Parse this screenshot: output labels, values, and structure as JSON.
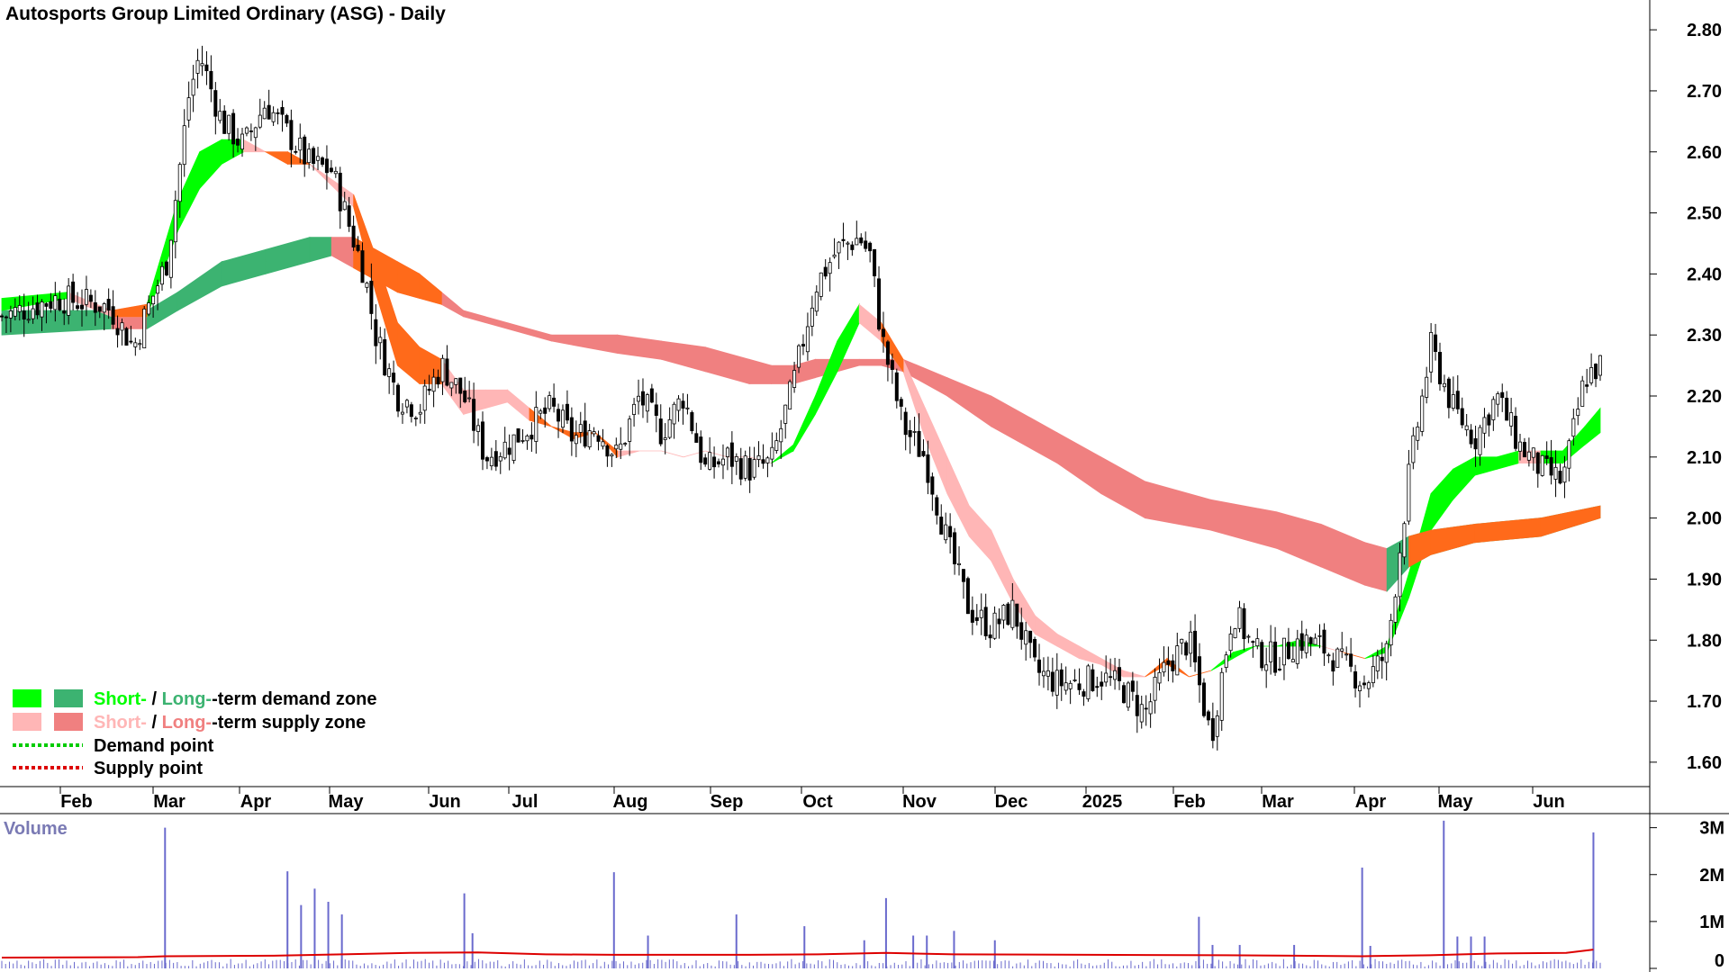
{
  "chart_data": {
    "type": "candlestick",
    "title": "Autosports Group Limited Ordinary (ASG) - Daily",
    "x_tick_labels": [
      "Feb",
      "Mar",
      "Apr",
      "May",
      "Jun",
      "Jul",
      "Aug",
      "Sep",
      "Oct",
      "Nov",
      "Dec",
      "2025",
      "Feb",
      "Mar",
      "Apr",
      "May",
      "Jun"
    ],
    "y_ticks": [
      1.6,
      1.7,
      1.8,
      1.9,
      2.0,
      2.1,
      2.2,
      2.3,
      2.4,
      2.5,
      2.6,
      2.7,
      2.8
    ],
    "y_tick_labels": [
      "1.60",
      "1.70",
      "1.80",
      "1.90",
      "2.00",
      "2.10",
      "2.20",
      "2.30",
      "2.40",
      "2.50",
      "2.60",
      "2.70",
      "2.80"
    ],
    "ylim": [
      1.56,
      2.84
    ],
    "price_path": [
      [
        0,
        2.33
      ],
      [
        2.5,
        2.36
      ],
      [
        4.5,
        2.35
      ],
      [
        5,
        2.34
      ],
      [
        6,
        2.28
      ],
      [
        6.5,
        2.33
      ],
      [
        7.5,
        2.42
      ],
      [
        8,
        2.55
      ],
      [
        8.5,
        2.69
      ],
      [
        9,
        2.76
      ],
      [
        10,
        2.65
      ],
      [
        11,
        2.61
      ],
      [
        12,
        2.68
      ],
      [
        13,
        2.63
      ],
      [
        14,
        2.58
      ],
      [
        15,
        2.57
      ],
      [
        16.5,
        2.4
      ],
      [
        17,
        2.3
      ],
      [
        18,
        2.2
      ],
      [
        19,
        2.18
      ],
      [
        20,
        2.25
      ],
      [
        21,
        2.2
      ],
      [
        22,
        2.1
      ],
      [
        23,
        2.12
      ],
      [
        24,
        2.15
      ],
      [
        25,
        2.18
      ],
      [
        26,
        2.13
      ],
      [
        27,
        2.15
      ],
      [
        28,
        2.1
      ],
      [
        29,
        2.2
      ],
      [
        30,
        2.14
      ],
      [
        31,
        2.2
      ],
      [
        32,
        2.08
      ],
      [
        33,
        2.1
      ],
      [
        34,
        2.08
      ],
      [
        35,
        2.09
      ],
      [
        36,
        2.22
      ],
      [
        37,
        2.38
      ],
      [
        38,
        2.44
      ],
      [
        39,
        2.46
      ],
      [
        39.5,
        2.43
      ],
      [
        40,
        2.3
      ],
      [
        41,
        2.15
      ],
      [
        42,
        2.1
      ],
      [
        43,
        1.96
      ],
      [
        44,
        1.85
      ],
      [
        45,
        1.82
      ],
      [
        46,
        1.85
      ],
      [
        47,
        1.75
      ],
      [
        48,
        1.73
      ],
      [
        49,
        1.73
      ],
      [
        50,
        1.74
      ],
      [
        51,
        1.72
      ],
      [
        52,
        1.68
      ],
      [
        53,
        1.76
      ],
      [
        54,
        1.8
      ],
      [
        55,
        1.64
      ],
      [
        56,
        1.85
      ],
      [
        57,
        1.78
      ],
      [
        58,
        1.77
      ],
      [
        59,
        1.8
      ],
      [
        60,
        1.79
      ],
      [
        61,
        1.76
      ],
      [
        62,
        1.73
      ],
      [
        63,
        1.78
      ],
      [
        64,
        2.07
      ],
      [
        65,
        2.28
      ],
      [
        66,
        2.18
      ],
      [
        67,
        2.13
      ],
      [
        68,
        2.2
      ],
      [
        69,
        2.12
      ],
      [
        70,
        2.08
      ],
      [
        71,
        2.06
      ],
      [
        72,
        2.23
      ],
      [
        72.7,
        2.25
      ]
    ],
    "short_term_zone": [
      [
        0,
        2.34,
        2.36,
        "demand"
      ],
      [
        3,
        2.36,
        2.37,
        "demand"
      ],
      [
        5,
        2.33,
        2.34,
        "supply"
      ],
      [
        6.6,
        2.33,
        2.35,
        "supply"
      ],
      [
        8,
        2.47,
        2.52,
        "demand"
      ],
      [
        9,
        2.54,
        2.6,
        "demand"
      ],
      [
        10,
        2.58,
        2.62,
        "demand"
      ],
      [
        11,
        2.6,
        2.62,
        "demand"
      ],
      [
        12,
        2.6,
        2.6,
        "supply"
      ],
      [
        13,
        2.58,
        2.6,
        "supply"
      ],
      [
        14,
        2.58,
        2.58,
        "supply"
      ],
      [
        16,
        2.51,
        2.53,
        "supply"
      ],
      [
        17,
        2.37,
        2.43,
        "supply"
      ],
      [
        18,
        2.25,
        2.32,
        "supply"
      ],
      [
        19,
        2.22,
        2.28,
        "supply"
      ],
      [
        20,
        2.22,
        2.26,
        "supply"
      ],
      [
        21,
        2.17,
        2.21,
        "supply"
      ],
      [
        22,
        2.18,
        2.21,
        "supply"
      ],
      [
        23,
        2.19,
        2.21,
        "supply"
      ],
      [
        24,
        2.16,
        2.18,
        "supply"
      ],
      [
        25,
        2.15,
        2.15,
        "supply"
      ],
      [
        26,
        2.13,
        2.14,
        "supply"
      ],
      [
        27,
        2.14,
        2.14,
        "supply"
      ],
      [
        28,
        2.1,
        2.11,
        "supply"
      ],
      [
        29,
        2.11,
        2.11,
        "supply"
      ],
      [
        30,
        2.11,
        2.11,
        "supply"
      ],
      [
        31,
        2.1,
        2.1,
        "supply"
      ],
      [
        32,
        2.11,
        2.11,
        "supply"
      ],
      [
        33,
        2.1,
        2.1,
        "supply"
      ],
      [
        34,
        2.1,
        2.1,
        "supply"
      ],
      [
        35,
        2.09,
        2.09,
        "supply"
      ],
      [
        36,
        2.11,
        2.12,
        "demand"
      ],
      [
        37,
        2.17,
        2.2,
        "demand"
      ],
      [
        38,
        2.24,
        2.29,
        "demand"
      ],
      [
        39,
        2.32,
        2.35,
        "demand"
      ],
      [
        40,
        2.29,
        2.32,
        "supply"
      ],
      [
        41,
        2.24,
        2.26,
        "supply"
      ],
      [
        42,
        2.13,
        2.18,
        "supply"
      ],
      [
        43,
        2.04,
        2.1,
        "supply"
      ],
      [
        44,
        1.97,
        2.02,
        "supply"
      ],
      [
        45,
        1.93,
        1.98,
        "supply"
      ],
      [
        46,
        1.86,
        1.9,
        "supply"
      ],
      [
        47,
        1.81,
        1.84,
        "supply"
      ],
      [
        48,
        1.79,
        1.81,
        "supply"
      ],
      [
        49,
        1.77,
        1.79,
        "supply"
      ],
      [
        50,
        1.76,
        1.77,
        "supply"
      ],
      [
        51,
        1.74,
        1.75,
        "supply"
      ],
      [
        52,
        1.74,
        1.74,
        "supply"
      ],
      [
        53,
        1.76,
        1.77,
        "supply"
      ],
      [
        54,
        1.74,
        1.74,
        "supply"
      ],
      [
        55,
        1.75,
        1.75,
        "supply"
      ],
      [
        56,
        1.77,
        1.78,
        "demand"
      ],
      [
        57,
        1.79,
        1.79,
        "demand"
      ],
      [
        58,
        1.79,
        1.79,
        "demand"
      ],
      [
        59,
        1.79,
        1.8,
        "demand"
      ],
      [
        60,
        1.79,
        1.79,
        "demand"
      ],
      [
        61,
        1.78,
        1.78,
        "supply"
      ],
      [
        62,
        1.77,
        1.77,
        "supply"
      ],
      [
        63,
        1.78,
        1.79,
        "demand"
      ],
      [
        64,
        1.87,
        1.91,
        "demand"
      ],
      [
        65,
        1.98,
        2.04,
        "demand"
      ],
      [
        66,
        2.03,
        2.08,
        "demand"
      ],
      [
        67,
        2.07,
        2.1,
        "demand"
      ],
      [
        68,
        2.08,
        2.1,
        "demand"
      ],
      [
        69,
        2.09,
        2.11,
        "demand"
      ],
      [
        70,
        2.09,
        2.11,
        "supply"
      ],
      [
        71,
        2.09,
        2.11,
        "demand"
      ],
      [
        72,
        2.12,
        2.15,
        "demand"
      ],
      [
        72.7,
        2.14,
        2.18,
        "demand"
      ]
    ],
    "long_term_zone": [
      [
        0,
        2.3,
        2.34,
        "demand"
      ],
      [
        5,
        2.31,
        2.34,
        "demand"
      ],
      [
        6.6,
        2.31,
        2.34,
        "supply"
      ],
      [
        8,
        2.34,
        2.37,
        "demand"
      ],
      [
        10,
        2.38,
        2.42,
        "demand"
      ],
      [
        12,
        2.4,
        2.44,
        "demand"
      ],
      [
        14,
        2.42,
        2.46,
        "demand"
      ],
      [
        15,
        2.43,
        2.46,
        "demand"
      ],
      [
        16,
        2.41,
        2.46,
        "supply"
      ],
      [
        17,
        2.39,
        2.44,
        "supply"
      ],
      [
        18,
        2.37,
        2.42,
        "supply"
      ],
      [
        19,
        2.36,
        2.4,
        "supply"
      ],
      [
        20,
        2.35,
        2.37,
        "supply"
      ],
      [
        21,
        2.33,
        2.34,
        "supply"
      ],
      [
        22,
        2.32,
        2.33,
        "supply"
      ],
      [
        25,
        2.29,
        2.3,
        "supply"
      ],
      [
        28,
        2.27,
        2.3,
        "supply"
      ],
      [
        30,
        2.26,
        2.29,
        "supply"
      ],
      [
        32,
        2.24,
        2.28,
        "supply"
      ],
      [
        34,
        2.22,
        2.26,
        "supply"
      ],
      [
        35,
        2.22,
        2.25,
        "supply"
      ],
      [
        36,
        2.22,
        2.25,
        "supply"
      ],
      [
        37,
        2.23,
        2.26,
        "supply"
      ],
      [
        38,
        2.24,
        2.26,
        "supply"
      ],
      [
        39,
        2.25,
        2.26,
        "supply"
      ],
      [
        40,
        2.25,
        2.26,
        "supply"
      ],
      [
        41,
        2.24,
        2.26,
        "supply"
      ],
      [
        43,
        2.2,
        2.23,
        "supply"
      ],
      [
        45,
        2.15,
        2.2,
        "supply"
      ],
      [
        48,
        2.09,
        2.14,
        "supply"
      ],
      [
        50,
        2.04,
        2.1,
        "supply"
      ],
      [
        52,
        2.0,
        2.06,
        "supply"
      ],
      [
        55,
        1.98,
        2.03,
        "supply"
      ],
      [
        58,
        1.95,
        2.01,
        "supply"
      ],
      [
        60,
        1.92,
        1.99,
        "supply"
      ],
      [
        62,
        1.89,
        1.96,
        "supply"
      ],
      [
        63,
        1.88,
        1.95,
        "supply"
      ],
      [
        64,
        1.92,
        1.97,
        "demand"
      ],
      [
        65,
        1.94,
        1.98,
        "demand"
      ],
      [
        67,
        1.96,
        1.99,
        "demand"
      ],
      [
        70,
        1.97,
        2.0,
        "demand"
      ],
      [
        72.7,
        2.0,
        2.02,
        "demand"
      ]
    ],
    "legend": [
      {
        "label_short": "Short-",
        "sep": " / ",
        "label_long": "Long-",
        "suffix": "-term demand zone",
        "short_color": "#00ff00",
        "long_color": "#3cb371"
      },
      {
        "label_short": "Short-",
        "sep": " / ",
        "label_long": "Long-",
        "suffix": "-term supply zone",
        "short_color": "#ffb6b6",
        "long_color": "#f08080"
      },
      {
        "label": "Demand point",
        "color": "#00cc00"
      },
      {
        "label": "Supply point",
        "color": "#dd0000"
      }
    ],
    "volume": {
      "label": "Volume",
      "y_ticks": [
        0,
        1000000,
        2000000,
        3000000
      ],
      "y_tick_labels": [
        "0",
        "1M",
        "2M",
        "3M"
      ],
      "ylim": [
        0,
        3300000
      ],
      "spikes": [
        [
          12,
          3000000
        ],
        [
          21,
          2070000
        ],
        [
          22,
          1350000
        ],
        [
          23,
          1700000
        ],
        [
          24,
          1420000
        ],
        [
          25,
          1150000
        ],
        [
          34,
          1600000
        ],
        [
          34.6,
          750000
        ],
        [
          45,
          2050000
        ],
        [
          47.5,
          700000
        ],
        [
          54,
          1150000
        ],
        [
          59,
          900000
        ],
        [
          63.4,
          600000
        ],
        [
          65,
          1500000
        ],
        [
          67,
          700000
        ],
        [
          68,
          700000
        ],
        [
          70,
          800000
        ],
        [
          73,
          600000
        ],
        [
          88,
          1100000
        ],
        [
          89,
          500000
        ],
        [
          91,
          500000
        ],
        [
          95,
          500000
        ],
        [
          100,
          2150000
        ],
        [
          100.6,
          480000
        ],
        [
          106,
          3150000
        ],
        [
          107,
          680000
        ],
        [
          108,
          680000
        ],
        [
          109,
          680000
        ],
        [
          117,
          2900000
        ]
      ],
      "avg": [
        [
          0,
          230000
        ],
        [
          10,
          240000
        ],
        [
          12,
          260000
        ],
        [
          20,
          270000
        ],
        [
          25,
          300000
        ],
        [
          30,
          330000
        ],
        [
          35,
          340000
        ],
        [
          40,
          300000
        ],
        [
          45,
          290000
        ],
        [
          55,
          290000
        ],
        [
          60,
          300000
        ],
        [
          65,
          330000
        ],
        [
          70,
          300000
        ],
        [
          80,
          290000
        ],
        [
          90,
          280000
        ],
        [
          95,
          270000
        ],
        [
          100,
          260000
        ],
        [
          105,
          280000
        ],
        [
          110,
          320000
        ],
        [
          115,
          330000
        ],
        [
          117,
          400000
        ]
      ],
      "avg_color": "#dd0000",
      "bar_color": "#6a6acd"
    },
    "colors": {
      "demand_short": "#00ff00",
      "demand_long": "#3cb371",
      "supply_short": "#ffb6b6",
      "supply_long": "#f08080",
      "supply_short_dark": "#ff6a1a",
      "up_candle": "#ffffff",
      "down_candle": "#000000",
      "volume_label": "#7a7ab4"
    }
  }
}
